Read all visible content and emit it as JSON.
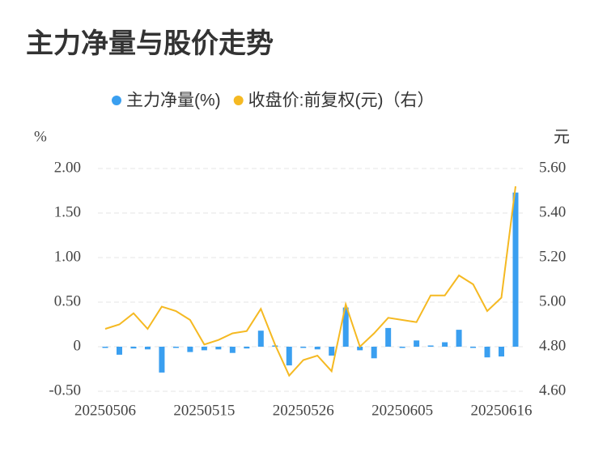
{
  "chart_data": {
    "type": "bar",
    "title": "主力净量与股价走势",
    "ylabel": "%",
    "y2label": "元",
    "categories": [
      "20250506",
      null,
      null,
      null,
      null,
      null,
      null,
      "20250515",
      null,
      null,
      null,
      null,
      null,
      null,
      "20250526",
      null,
      null,
      null,
      null,
      null,
      null,
      "20250605",
      null,
      null,
      null,
      null,
      null,
      null,
      "20250616",
      null
    ],
    "series": [
      {
        "name": "主力净量(%)",
        "type": "bar",
        "color": "#3a9ff0",
        "values": [
          -0.01,
          -0.09,
          -0.02,
          -0.03,
          -0.29,
          -0.01,
          -0.06,
          -0.04,
          -0.03,
          -0.07,
          -0.02,
          0.18,
          0,
          -0.21,
          -0.01,
          -0.03,
          -0.1,
          0.44,
          -0.04,
          -0.13,
          0.21,
          -0.01,
          0.07,
          0.01,
          0.05,
          0.19,
          -0.01,
          -0.12,
          -0.11,
          1.73
        ]
      },
      {
        "name": "收盘价:前复权(元)（右）",
        "type": "line",
        "axis": "y2",
        "color": "#f5b922",
        "values": [
          4.88,
          4.9,
          4.95,
          4.88,
          4.98,
          4.96,
          4.92,
          4.81,
          4.83,
          4.86,
          4.87,
          4.97,
          4.81,
          4.67,
          4.74,
          4.76,
          4.69,
          4.99,
          4.8,
          4.86,
          4.93,
          4.92,
          4.91,
          5.03,
          5.03,
          5.12,
          5.08,
          4.96,
          5.02,
          5.52
        ]
      }
    ],
    "ylim": [
      -0.5,
      2
    ],
    "yticks": [
      {
        "value": -0.5,
        "label": "-0.50"
      },
      0,
      {
        "value": 0.5,
        "label": "0.50"
      },
      {
        "value": 1,
        "label": "1.00"
      },
      {
        "value": 1.5,
        "label": "1.50"
      },
      {
        "value": 2,
        "label": "2.00"
      }
    ],
    "y2lim": [
      4.6,
      5.6
    ],
    "y2ticks": [
      {
        "value": 4.6,
        "label": "4.60"
      },
      {
        "value": 4.8,
        "label": "4.80"
      },
      {
        "value": 5,
        "label": "5.00"
      },
      {
        "value": 5.2,
        "label": "5.20"
      },
      {
        "value": 5.4,
        "label": "5.40"
      },
      {
        "value": 5.6,
        "label": "5.60"
      }
    ],
    "grid": true
  }
}
